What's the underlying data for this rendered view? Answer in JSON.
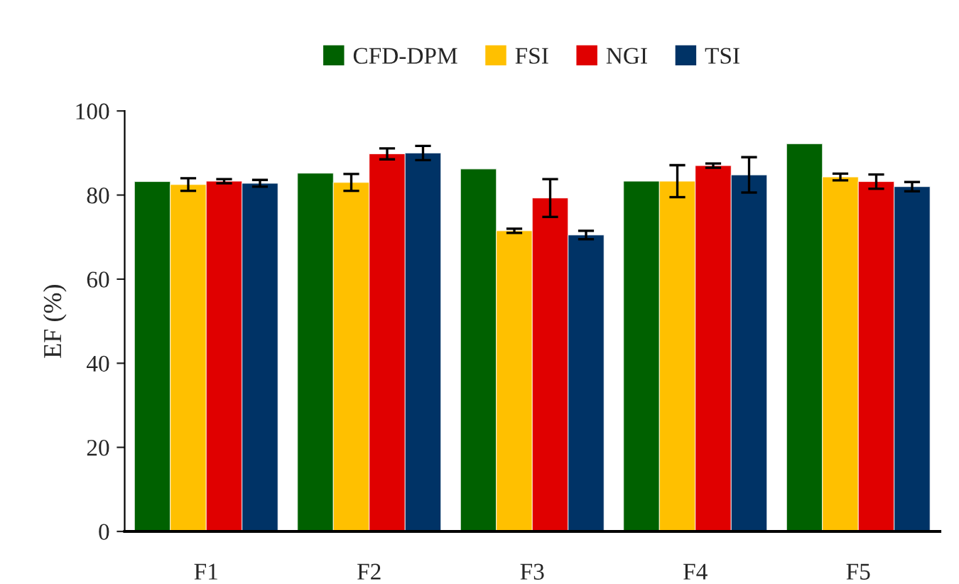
{
  "chart_data": {
    "type": "bar",
    "ylabel": "EF (%)",
    "categories": [
      "F1",
      "F2",
      "F3",
      "F4",
      "F5"
    ],
    "series": [
      {
        "name": "CFD-DPM",
        "color": "#006100",
        "values": [
          83.2,
          85.2,
          86.2,
          83.3,
          92.2
        ]
      },
      {
        "name": "FSI",
        "color": "#ffc000",
        "values": [
          82.5,
          83,
          71.5,
          83.3,
          84.3
        ],
        "errors": [
          1.5,
          2,
          0.5,
          3.8,
          0.8
        ]
      },
      {
        "name": "NGI",
        "color": "#e00000",
        "values": [
          83.3,
          89.8,
          79.3,
          87,
          83.2
        ],
        "errors": [
          0.5,
          1.3,
          4.5,
          0.5,
          1.7
        ]
      },
      {
        "name": "TSI",
        "color": "#003366",
        "values": [
          82.8,
          90,
          70.5,
          84.8,
          82
        ],
        "errors": [
          0.8,
          1.7,
          1,
          4.2,
          1.1
        ]
      }
    ],
    "ylim": [
      0,
      100
    ],
    "yticks": [
      0,
      20,
      40,
      60,
      80,
      100
    ],
    "grid": false,
    "legend": "top"
  }
}
